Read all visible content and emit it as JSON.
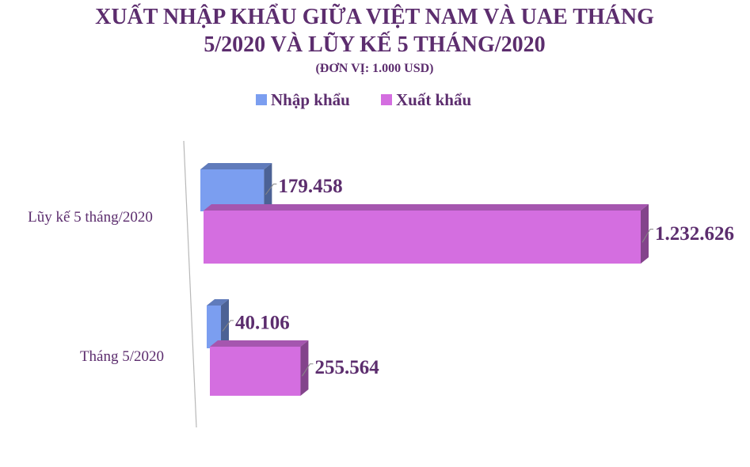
{
  "chart_data": {
    "type": "bar",
    "orientation": "horizontal",
    "title_line1": "XUẤT NHẬP KHẨU GIỮA VIỆT NAM VÀ UAE THÁNG",
    "title_line2": "5/2020 VÀ LŨY KẾ 5 THÁNG/2020",
    "subtitle": "(ĐƠN VỊ: 1.000 USD)",
    "legend_position": "top",
    "categories": [
      "Lũy kế 5 tháng/2020",
      "Tháng 5/2020"
    ],
    "series": [
      {
        "name": "Nhập khẩu",
        "color": "#7b9ef0",
        "values": [
          179458,
          40106
        ],
        "labels": [
          "179.458",
          "40.106"
        ]
      },
      {
        "name": "Xuất khẩu",
        "color": "#d46ee0",
        "values": [
          1232626,
          255564
        ],
        "labels": [
          "1.232.626",
          "255.564"
        ]
      }
    ],
    "grid": false
  }
}
